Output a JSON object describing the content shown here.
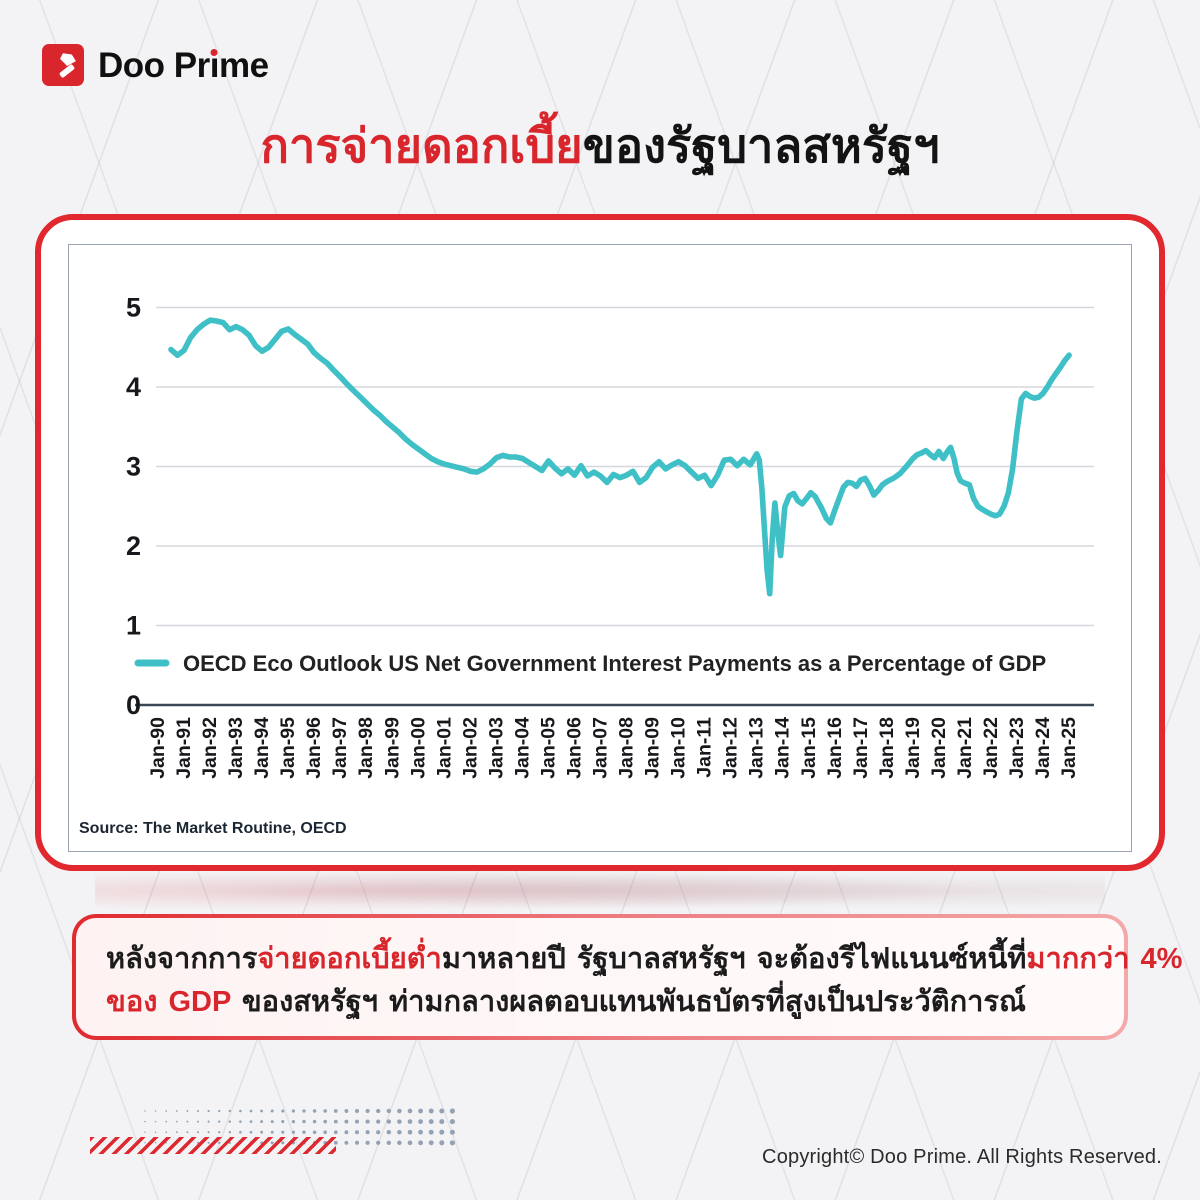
{
  "logo": {
    "wordmark_before": "Doo Pr",
    "wordmark_dotless_i": "ı",
    "wordmark_after": "me",
    "brand_red": "#D8262C"
  },
  "title": {
    "red_part": "การจ่ายดอกเบี้ย",
    "black_part": "ของรัฐบาลสหรัฐฯ"
  },
  "chart_data": {
    "type": "line",
    "legend": "OECD Eco Outlook US Net Government Interest Payments as a Percentage of GDP",
    "legend_position": "inside-bottom-left",
    "source": "Source: The Market Routine, OECD",
    "line_color": "#3EC0C6",
    "grid_color": "#D5D7DC",
    "zero_axis_color": "#3A4757",
    "axis_text_color": "#16181C",
    "grid": true,
    "ylim": [
      0,
      5
    ],
    "y_ticks": [
      0,
      1,
      2,
      3,
      4,
      5
    ],
    "x_range_years": [
      1990,
      2025
    ],
    "x_labels": [
      "Jan-90",
      "Jan-91",
      "Jan-92",
      "Jan-93",
      "Jan-94",
      "Jan-95",
      "Jan-96",
      "Jan-97",
      "Jan-98",
      "Jan-99",
      "Jan-00",
      "Jan-01",
      "Jan-02",
      "Jan-03",
      "Jan-04",
      "Jan-05",
      "Jan-06",
      "Jan-07",
      "Jan-08",
      "Jan-09",
      "Jan-10",
      "Jan-11",
      "Jan-12",
      "Jan-13",
      "Jan-14",
      "Jan-15",
      "Jan-16",
      "Jan-17",
      "Jan-18",
      "Jan-19",
      "Jan-20",
      "Jan-21",
      "Jan-22",
      "Jan-23",
      "Jan-24",
      "Jan-25"
    ],
    "points": [
      [
        1990.5,
        4.47
      ],
      [
        1990.75,
        4.4
      ],
      [
        1991.0,
        4.46
      ],
      [
        1991.25,
        4.62
      ],
      [
        1991.5,
        4.72
      ],
      [
        1991.75,
        4.79
      ],
      [
        1992.0,
        4.84
      ],
      [
        1992.25,
        4.83
      ],
      [
        1992.5,
        4.81
      ],
      [
        1992.75,
        4.72
      ],
      [
        1993.0,
        4.76
      ],
      [
        1993.25,
        4.72
      ],
      [
        1993.5,
        4.65
      ],
      [
        1993.75,
        4.52
      ],
      [
        1994.0,
        4.45
      ],
      [
        1994.25,
        4.5
      ],
      [
        1994.5,
        4.6
      ],
      [
        1994.75,
        4.7
      ],
      [
        1995.0,
        4.73
      ],
      [
        1995.25,
        4.66
      ],
      [
        1995.5,
        4.6
      ],
      [
        1995.75,
        4.54
      ],
      [
        1996.0,
        4.43
      ],
      [
        1996.25,
        4.36
      ],
      [
        1996.5,
        4.3
      ],
      [
        1996.75,
        4.21
      ],
      [
        1997.0,
        4.13
      ],
      [
        1997.25,
        4.04
      ],
      [
        1997.5,
        3.96
      ],
      [
        1997.75,
        3.88
      ],
      [
        1998.0,
        3.8
      ],
      [
        1998.25,
        3.72
      ],
      [
        1998.5,
        3.65
      ],
      [
        1998.75,
        3.57
      ],
      [
        1999.0,
        3.5
      ],
      [
        1999.25,
        3.43
      ],
      [
        1999.5,
        3.35
      ],
      [
        1999.75,
        3.28
      ],
      [
        2000.0,
        3.22
      ],
      [
        2000.25,
        3.16
      ],
      [
        2000.5,
        3.1
      ],
      [
        2000.75,
        3.06
      ],
      [
        2001.0,
        3.03
      ],
      [
        2001.25,
        3.01
      ],
      [
        2001.5,
        2.99
      ],
      [
        2001.75,
        2.97
      ],
      [
        2002.0,
        2.94
      ],
      [
        2002.25,
        2.93
      ],
      [
        2002.5,
        2.97
      ],
      [
        2002.75,
        3.03
      ],
      [
        2003.0,
        3.11
      ],
      [
        2003.25,
        3.14
      ],
      [
        2003.5,
        3.12
      ],
      [
        2003.75,
        3.12
      ],
      [
        2004.0,
        3.1
      ],
      [
        2004.25,
        3.05
      ],
      [
        2004.5,
        3.0
      ],
      [
        2004.75,
        2.95
      ],
      [
        2005.0,
        3.07
      ],
      [
        2005.25,
        2.98
      ],
      [
        2005.5,
        2.91
      ],
      [
        2005.75,
        2.97
      ],
      [
        2006.0,
        2.89
      ],
      [
        2006.25,
        3.01
      ],
      [
        2006.5,
        2.88
      ],
      [
        2006.75,
        2.93
      ],
      [
        2007.0,
        2.88
      ],
      [
        2007.25,
        2.8
      ],
      [
        2007.5,
        2.9
      ],
      [
        2007.75,
        2.86
      ],
      [
        2008.0,
        2.89
      ],
      [
        2008.25,
        2.94
      ],
      [
        2008.5,
        2.8
      ],
      [
        2008.75,
        2.86
      ],
      [
        2009.0,
        2.99
      ],
      [
        2009.25,
        3.06
      ],
      [
        2009.5,
        2.97
      ],
      [
        2009.75,
        3.02
      ],
      [
        2010.0,
        3.06
      ],
      [
        2010.25,
        3.01
      ],
      [
        2010.5,
        2.93
      ],
      [
        2010.75,
        2.85
      ],
      [
        2011.0,
        2.89
      ],
      [
        2011.25,
        2.76
      ],
      [
        2011.5,
        2.89
      ],
      [
        2011.75,
        3.08
      ],
      [
        2012.0,
        3.09
      ],
      [
        2012.25,
        3.01
      ],
      [
        2012.5,
        3.09
      ],
      [
        2012.75,
        3.02
      ],
      [
        2013.0,
        3.16
      ],
      [
        2013.1,
        3.08
      ],
      [
        2013.2,
        2.72
      ],
      [
        2013.3,
        2.2
      ],
      [
        2013.4,
        1.7
      ],
      [
        2013.5,
        1.4
      ],
      [
        2013.6,
        2.1
      ],
      [
        2013.7,
        2.54
      ],
      [
        2013.8,
        2.2
      ],
      [
        2013.92,
        1.88
      ],
      [
        2014.08,
        2.49
      ],
      [
        2014.25,
        2.63
      ],
      [
        2014.42,
        2.66
      ],
      [
        2014.58,
        2.57
      ],
      [
        2014.75,
        2.53
      ],
      [
        2014.92,
        2.6
      ],
      [
        2015.08,
        2.67
      ],
      [
        2015.25,
        2.62
      ],
      [
        2015.5,
        2.47
      ],
      [
        2015.67,
        2.35
      ],
      [
        2015.83,
        2.29
      ],
      [
        2016.0,
        2.45
      ],
      [
        2016.17,
        2.6
      ],
      [
        2016.33,
        2.74
      ],
      [
        2016.5,
        2.8
      ],
      [
        2016.67,
        2.79
      ],
      [
        2016.83,
        2.75
      ],
      [
        2017.0,
        2.83
      ],
      [
        2017.17,
        2.85
      ],
      [
        2017.33,
        2.76
      ],
      [
        2017.5,
        2.64
      ],
      [
        2017.67,
        2.7
      ],
      [
        2017.83,
        2.77
      ],
      [
        2018.0,
        2.81
      ],
      [
        2018.25,
        2.85
      ],
      [
        2018.5,
        2.91
      ],
      [
        2018.75,
        3.0
      ],
      [
        2019.0,
        3.1
      ],
      [
        2019.17,
        3.15
      ],
      [
        2019.33,
        3.17
      ],
      [
        2019.5,
        3.2
      ],
      [
        2019.67,
        3.15
      ],
      [
        2019.83,
        3.11
      ],
      [
        2020.0,
        3.19
      ],
      [
        2020.17,
        3.1
      ],
      [
        2020.33,
        3.19
      ],
      [
        2020.45,
        3.24
      ],
      [
        2020.58,
        3.1
      ],
      [
        2020.7,
        2.92
      ],
      [
        2020.83,
        2.82
      ],
      [
        2021.0,
        2.79
      ],
      [
        2021.17,
        2.77
      ],
      [
        2021.33,
        2.6
      ],
      [
        2021.5,
        2.5
      ],
      [
        2021.67,
        2.46
      ],
      [
        2021.83,
        2.43
      ],
      [
        2022.0,
        2.4
      ],
      [
        2022.17,
        2.38
      ],
      [
        2022.33,
        2.4
      ],
      [
        2022.5,
        2.5
      ],
      [
        2022.67,
        2.67
      ],
      [
        2022.83,
        2.97
      ],
      [
        2023.0,
        3.45
      ],
      [
        2023.17,
        3.85
      ],
      [
        2023.33,
        3.92
      ],
      [
        2023.5,
        3.88
      ],
      [
        2023.67,
        3.86
      ],
      [
        2023.83,
        3.87
      ],
      [
        2024.0,
        3.92
      ],
      [
        2024.17,
        4.0
      ],
      [
        2024.33,
        4.09
      ],
      [
        2024.5,
        4.17
      ],
      [
        2024.67,
        4.25
      ],
      [
        2024.83,
        4.33
      ],
      [
        2025.0,
        4.4
      ]
    ]
  },
  "summary_box": {
    "lines": [
      {
        "segments": [
          {
            "text": "หลังจากการ",
            "red": false
          },
          {
            "text": "จ่ายดอกเบี้ยต่ำ",
            "red": true
          },
          {
            "text": "มาหลายปี  รัฐบาลสหรัฐฯ  จะต้องรีไฟแนนซ์หนี้ที่",
            "red": false
          },
          {
            "text": "มากกว่า 4%",
            "red": true
          }
        ]
      },
      {
        "segments": [
          {
            "text": "ของ GDP",
            "red": true
          },
          {
            "text": " ของสหรัฐฯ ท่ามกลางผลตอบแทนพันธบัตรที่สูงเป็นประวัติการณ์",
            "red": false
          }
        ]
      }
    ]
  },
  "footer": {
    "copyright": "Copyright© Doo Prime. All Rights Reserved."
  }
}
